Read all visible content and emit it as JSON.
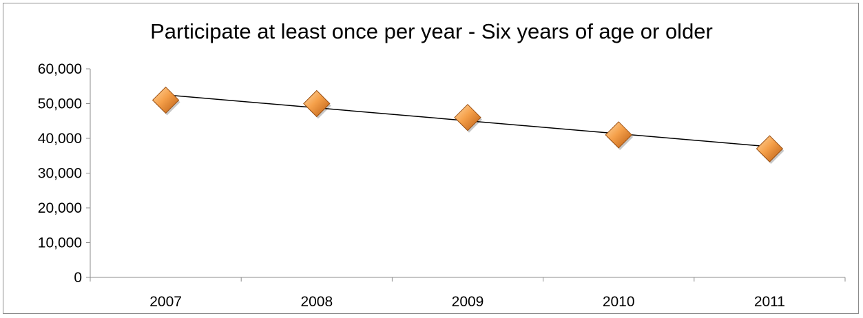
{
  "chart_data": {
    "type": "scatter",
    "title": "Participate at least once per year - Six years of age or older",
    "xlabel": "",
    "ylabel": "",
    "categories": [
      "2007",
      "2008",
      "2009",
      "2010",
      "2011"
    ],
    "series": [
      {
        "values": [
          51000,
          50000,
          46000,
          41000,
          37000
        ],
        "marker": "diamond",
        "color": "#f39a3c"
      }
    ],
    "trendline": {
      "type": "linear",
      "start": 52500,
      "end": 37600,
      "color": "#000000"
    },
    "ylim": [
      0,
      60000
    ],
    "yticks": [
      0,
      10000,
      20000,
      30000,
      40000,
      50000,
      60000
    ],
    "ytick_labels": [
      "0",
      "10,000",
      "20,000",
      "30,000",
      "40,000",
      "50,000",
      "60,000"
    ],
    "grid": false,
    "legend": "none"
  }
}
